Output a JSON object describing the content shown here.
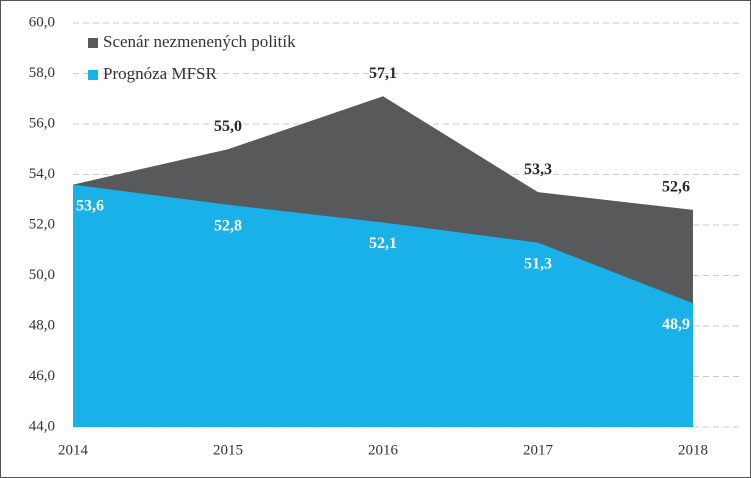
{
  "chart_data": {
    "type": "area",
    "categories": [
      "2014",
      "2015",
      "2016",
      "2017",
      "2018"
    ],
    "series": [
      {
        "name": "Scenár nezmenených politík",
        "color": "#58595b",
        "label_color": "#262626",
        "values": [
          53.6,
          55.0,
          57.1,
          53.3,
          52.6
        ],
        "value_labels": [
          null,
          "55,0",
          "57,1",
          "53,3",
          "52,6"
        ]
      },
      {
        "name": "Prognóza MFSR",
        "color": "#1ab0e8",
        "label_color": "#ffffff",
        "values": [
          53.6,
          52.8,
          52.1,
          51.3,
          48.9
        ],
        "value_labels": [
          "53,6",
          "52,8",
          "52,1",
          "51,3",
          "48,9"
        ]
      }
    ],
    "ylim": [
      44.0,
      60.0
    ],
    "yticks": [
      {
        "value": 44.0,
        "label": "44,0"
      },
      {
        "value": 46.0,
        "label": "46,0"
      },
      {
        "value": 48.0,
        "label": "48,0"
      },
      {
        "value": 50.0,
        "label": "50,0"
      },
      {
        "value": 52.0,
        "label": "52,0"
      },
      {
        "value": 54.0,
        "label": "54,0"
      },
      {
        "value": 56.0,
        "label": "56,0"
      },
      {
        "value": 58.0,
        "label": "58,0"
      },
      {
        "value": 60.0,
        "label": "60,0"
      }
    ],
    "grid": true,
    "legend": "top-left"
  }
}
